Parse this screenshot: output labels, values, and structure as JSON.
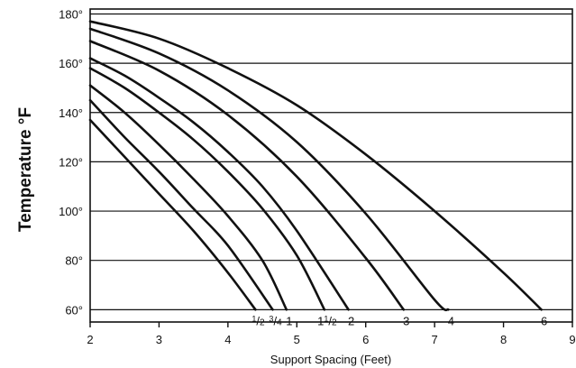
{
  "chart_data": {
    "type": "line",
    "xlabel": "Support Spacing (Feet)",
    "ylabel": "Temperature °F",
    "xlim": [
      2,
      9
    ],
    "ylim": [
      55,
      182
    ],
    "x_ticks": [
      2,
      3,
      4,
      5,
      6,
      7,
      8,
      9
    ],
    "x_tick_labels": [
      "2",
      "3",
      "4",
      "5",
      "6",
      "7",
      "8",
      "9"
    ],
    "y_ticks": [
      60,
      80,
      100,
      120,
      140,
      160,
      180
    ],
    "y_tick_labels": [
      "60°",
      "80°",
      "100°",
      "120°",
      "140°",
      "160°",
      "180°"
    ],
    "grid": "horizontal",
    "legend": "none",
    "series": [
      {
        "name": "½",
        "label_parts": [
          "1",
          "2"
        ],
        "x": [
          2.0,
          2.5,
          3.0,
          3.5,
          4.0,
          4.4
        ],
        "y": [
          137,
          122,
          107,
          92,
          75,
          60
        ]
      },
      {
        "name": "¾",
        "label_parts": [
          "3",
          "4"
        ],
        "x": [
          2.0,
          2.5,
          3.0,
          3.5,
          4.0,
          4.65
        ],
        "y": [
          145,
          130,
          116,
          101,
          86,
          60
        ]
      },
      {
        "name": "1",
        "x": [
          2.0,
          2.5,
          3.0,
          3.5,
          4.0,
          4.5,
          4.85
        ],
        "y": [
          151,
          140,
          127,
          113,
          98,
          80,
          60
        ]
      },
      {
        "name": "1½",
        "label_parts": [
          "1",
          "1",
          "2"
        ],
        "x": [
          2.0,
          2.5,
          3.0,
          3.5,
          4.0,
          4.5,
          5.0,
          5.4
        ],
        "y": [
          158,
          150,
          140,
          129,
          116,
          101,
          82,
          60
        ]
      },
      {
        "name": "2",
        "x": [
          2.0,
          2.5,
          3.0,
          3.5,
          4.0,
          4.5,
          5.0,
          5.75
        ],
        "y": [
          162,
          155,
          146,
          136,
          124,
          110,
          92,
          60
        ]
      },
      {
        "name": "3",
        "x": [
          2.0,
          3.0,
          4.0,
          5.0,
          6.0,
          6.55
        ],
        "y": [
          169,
          157,
          139,
          114,
          81,
          60
        ]
      },
      {
        "name": "4",
        "x": [
          2.0,
          3.0,
          4.0,
          5.0,
          6.0,
          7.0,
          7.2
        ],
        "y": [
          174,
          164,
          149,
          128,
          99,
          64,
          60
        ]
      },
      {
        "name": "6",
        "x": [
          2.0,
          3.0,
          4.0,
          5.0,
          6.0,
          7.0,
          8.0,
          8.55
        ],
        "y": [
          177,
          170,
          158,
          143,
          123,
          100,
          75,
          60
        ]
      }
    ]
  }
}
